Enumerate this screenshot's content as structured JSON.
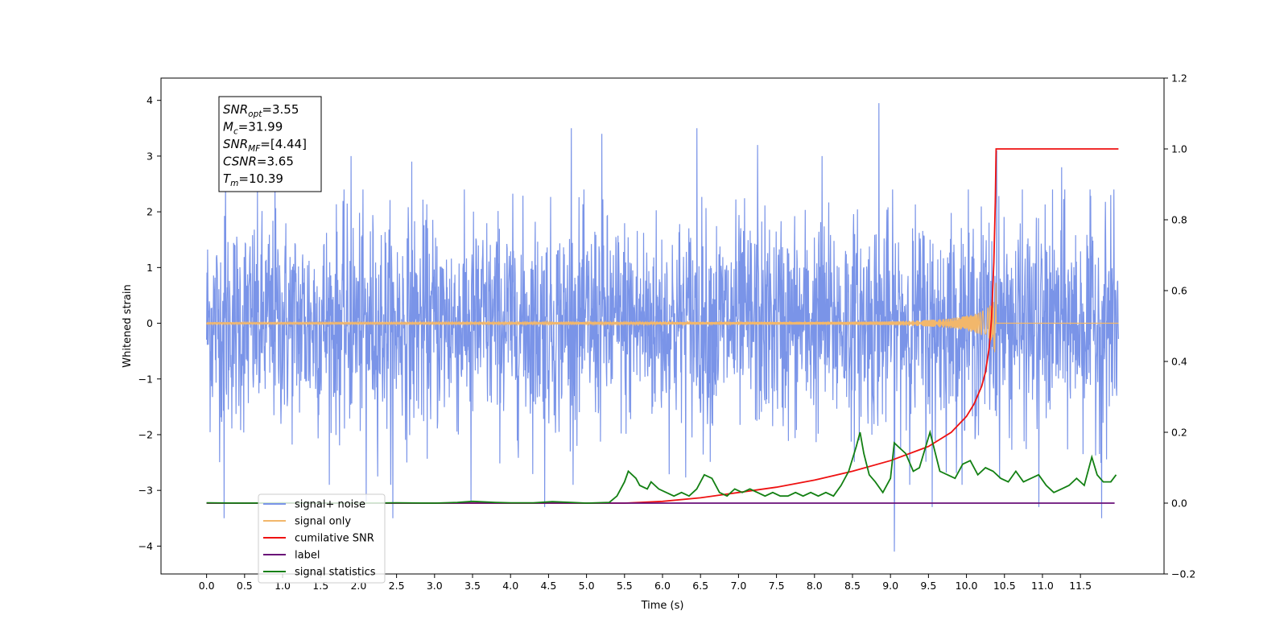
{
  "chart_data": {
    "type": "line",
    "title": "",
    "xlabel": "Time (s)",
    "ylabel": "Whitened strain",
    "xlim": [
      -0.6,
      12.6
    ],
    "ylim": [
      -4.5,
      4.4
    ],
    "y2lim": [
      -0.2,
      1.2
    ],
    "x_ticks": [
      "0.0",
      "0.5",
      "1.0",
      "1.5",
      "2.0",
      "2.5",
      "3.0",
      "3.5",
      "4.0",
      "4.5",
      "5.0",
      "5.5",
      "6.0",
      "6.5",
      "7.0",
      "7.5",
      "8.0",
      "8.5",
      "9.0",
      "9.5",
      "10.0",
      "10.5",
      "11.0",
      "11.5"
    ],
    "x_tick_values": [
      0,
      0.5,
      1,
      1.5,
      2,
      2.5,
      3,
      3.5,
      4,
      4.5,
      5,
      5.5,
      6,
      6.5,
      7,
      7.5,
      8,
      8.5,
      9,
      9.5,
      10,
      10.5,
      11,
      11.5
    ],
    "y_ticks": [
      "−4",
      "−3",
      "−2",
      "−1",
      "0",
      "1",
      "2",
      "3",
      "4"
    ],
    "y_tick_values": [
      -4,
      -3,
      -2,
      -1,
      0,
      1,
      2,
      3,
      4
    ],
    "y2_ticks": [
      "−0.2",
      "0.0",
      "0.2",
      "0.4",
      "0.6",
      "0.8",
      "1.0",
      "1.2"
    ],
    "y2_tick_values": [
      -0.2,
      0,
      0.2,
      0.4,
      0.6,
      0.8,
      1.0,
      1.2
    ],
    "grid": false,
    "legend_position": "lower-left",
    "annotation": {
      "lines": [
        {
          "base": "SNR",
          "sub": "opt",
          "rest": "=3.55"
        },
        {
          "base": "M",
          "sub": "c",
          "rest": "=31.99"
        },
        {
          "base": "SNR",
          "sub": "MF",
          "rest": "=[4.44]"
        },
        {
          "base": "CSNR",
          "sub": "",
          "rest": "=3.65"
        },
        {
          "base": "T",
          "sub": "m",
          "rest": "=10.39"
        }
      ]
    },
    "series": [
      {
        "name": "signal+ noise",
        "color": "#7a94e8",
        "axis": "left",
        "kind": "noise",
        "x_range": [
          0,
          12.0
        ],
        "spikes": [
          {
            "x": 0.23,
            "y": -3.5
          },
          {
            "x": 0.25,
            "y": 2.6
          },
          {
            "x": 0.9,
            "y": 2.8
          },
          {
            "x": 1.9,
            "y": 3.0
          },
          {
            "x": 2.1,
            "y": -3.2
          },
          {
            "x": 2.45,
            "y": -3.5
          },
          {
            "x": 2.7,
            "y": 2.9
          },
          {
            "x": 3.48,
            "y": -3.2
          },
          {
            "x": 4.45,
            "y": -3.3
          },
          {
            "x": 4.8,
            "y": 3.5
          },
          {
            "x": 5.2,
            "y": 3.4
          },
          {
            "x": 6.45,
            "y": 3.5
          },
          {
            "x": 7.25,
            "y": 3.2
          },
          {
            "x": 8.1,
            "y": 3.0
          },
          {
            "x": 8.85,
            "y": 3.95
          },
          {
            "x": 9.05,
            "y": -4.1
          },
          {
            "x": 9.55,
            "y": -3.3
          },
          {
            "x": 10.4,
            "y": 3.1
          },
          {
            "x": 10.95,
            "y": -3.3
          },
          {
            "x": 11.25,
            "y": 2.8
          },
          {
            "x": 11.78,
            "y": -3.5
          },
          {
            "x": 11.9,
            "y": 2.3
          }
        ]
      },
      {
        "name": "signal only",
        "color": "#f2b76b",
        "axis": "left",
        "kind": "chirp",
        "x_range": [
          0,
          12.0
        ],
        "merger_time": 10.39,
        "peak_amplitude": 0.78
      },
      {
        "name": "cumilative SNR",
        "color": "#ee1111",
        "axis": "right",
        "x": [
          0,
          5.5,
          6.0,
          6.5,
          7.0,
          7.5,
          8.0,
          8.5,
          9.0,
          9.5,
          9.8,
          10.0,
          10.1,
          10.2,
          10.25,
          10.3,
          10.33,
          10.36,
          10.38,
          10.39,
          10.42,
          12.0
        ],
        "values": [
          0,
          0,
          0.005,
          0.015,
          0.03,
          0.045,
          0.065,
          0.09,
          0.12,
          0.16,
          0.2,
          0.245,
          0.28,
          0.33,
          0.37,
          0.44,
          0.52,
          0.68,
          0.85,
          1.0,
          1.0,
          1.0
        ]
      },
      {
        "name": "label",
        "color": "#6a0f78",
        "axis": "right",
        "x": [
          0,
          11.95
        ],
        "values": [
          0,
          0
        ]
      },
      {
        "name": "signal statistics",
        "color": "#138013",
        "axis": "right",
        "x": [
          0,
          0.5,
          1.0,
          1.5,
          2.0,
          2.5,
          3.0,
          3.3,
          3.5,
          3.8,
          4.0,
          4.3,
          4.55,
          4.8,
          5.0,
          5.3,
          5.4,
          5.5,
          5.55,
          5.65,
          5.7,
          5.8,
          5.85,
          5.95,
          6.05,
          6.15,
          6.25,
          6.35,
          6.45,
          6.55,
          6.65,
          6.75,
          6.85,
          6.95,
          7.05,
          7.15,
          7.25,
          7.35,
          7.45,
          7.55,
          7.65,
          7.75,
          7.85,
          7.95,
          8.05,
          8.15,
          8.25,
          8.35,
          8.45,
          8.55,
          8.6,
          8.65,
          8.72,
          8.8,
          8.9,
          9.0,
          9.05,
          9.1,
          9.2,
          9.3,
          9.38,
          9.45,
          9.52,
          9.58,
          9.65,
          9.75,
          9.85,
          9.95,
          10.05,
          10.15,
          10.25,
          10.35,
          10.45,
          10.55,
          10.65,
          10.75,
          10.85,
          10.95,
          11.05,
          11.15,
          11.25,
          11.35,
          11.45,
          11.55,
          11.65,
          11.72,
          11.8,
          11.9,
          11.97
        ],
        "values": [
          0.001,
          0.0,
          0.001,
          0.0,
          0.0,
          0.001,
          0.0,
          0.002,
          0.005,
          0.002,
          0.001,
          0.001,
          0.004,
          0.002,
          0.0,
          0.002,
          0.02,
          0.06,
          0.09,
          0.07,
          0.05,
          0.04,
          0.06,
          0.04,
          0.03,
          0.02,
          0.03,
          0.02,
          0.04,
          0.08,
          0.07,
          0.03,
          0.02,
          0.04,
          0.03,
          0.04,
          0.03,
          0.02,
          0.03,
          0.02,
          0.02,
          0.03,
          0.02,
          0.03,
          0.02,
          0.03,
          0.02,
          0.05,
          0.09,
          0.16,
          0.2,
          0.14,
          0.08,
          0.06,
          0.03,
          0.07,
          0.17,
          0.16,
          0.14,
          0.09,
          0.1,
          0.15,
          0.2,
          0.15,
          0.09,
          0.08,
          0.07,
          0.11,
          0.12,
          0.08,
          0.1,
          0.09,
          0.07,
          0.06,
          0.09,
          0.06,
          0.07,
          0.08,
          0.05,
          0.03,
          0.04,
          0.05,
          0.07,
          0.05,
          0.13,
          0.08,
          0.06,
          0.06,
          0.08
        ]
      }
    ],
    "legend_entries": [
      {
        "label": "signal+ noise",
        "color": "#7a94e8"
      },
      {
        "label": "signal only",
        "color": "#f2b76b"
      },
      {
        "label": "cumilative SNR",
        "color": "#ee1111"
      },
      {
        "label": "label",
        "color": "#6a0f78"
      },
      {
        "label": "signal statistics",
        "color": "#138013"
      }
    ]
  }
}
